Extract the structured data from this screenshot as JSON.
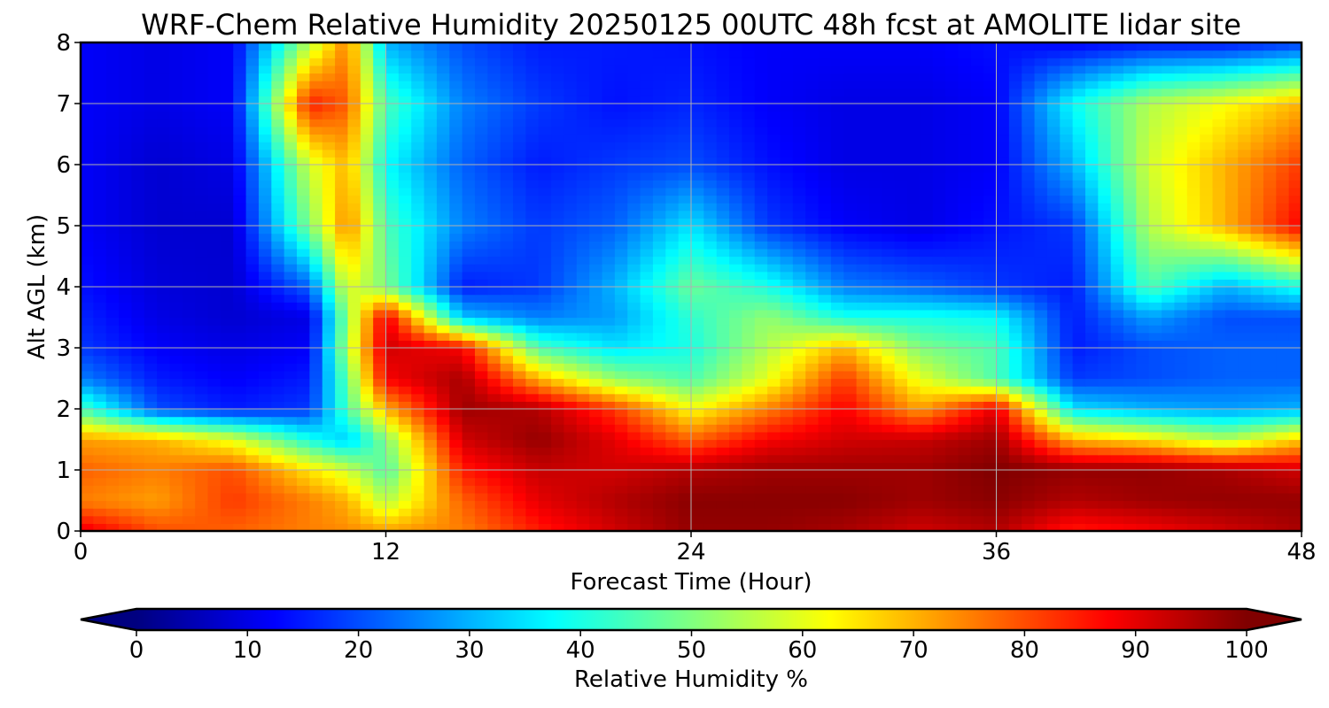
{
  "chart_data": {
    "type": "heatmap",
    "title": "WRF-Chem Relative Humidity 20250125 00UTC 48h fcst at AMOLITE lidar site",
    "xlabel": "Forecast Time (Hour)",
    "ylabel": "Alt AGL (km)",
    "xlim": [
      0,
      48
    ],
    "ylim": [
      0,
      8
    ],
    "xticks": [
      0,
      12,
      24,
      36,
      48
    ],
    "yticks": [
      0,
      1,
      2,
      3,
      4,
      5,
      6,
      7,
      8
    ],
    "grid": true,
    "colorbar": {
      "label": "Relative Humidity %",
      "range": [
        0,
        100
      ],
      "ticks": [
        0,
        10,
        20,
        30,
        40,
        50,
        60,
        70,
        80,
        90,
        100
      ],
      "colormap": "jet",
      "extend": "both",
      "orientation": "horizontal"
    },
    "x": [
      0,
      3,
      6,
      9,
      10.5,
      12,
      15,
      18,
      21,
      24,
      27,
      30,
      33,
      36,
      39,
      42,
      45,
      48
    ],
    "y": [
      0,
      0.5,
      1,
      1.5,
      2,
      2.5,
      3,
      3.5,
      4,
      5,
      6,
      7,
      8
    ],
    "values": [
      [
        90,
        80,
        78,
        75,
        74,
        72,
        75,
        85,
        92,
        98,
        98,
        96,
        92,
        95,
        85,
        88,
        92,
        96
      ],
      [
        75,
        72,
        82,
        75,
        70,
        55,
        78,
        90,
        95,
        99,
        99,
        99,
        97,
        99,
        95,
        97,
        98,
        98
      ],
      [
        78,
        75,
        80,
        65,
        58,
        45,
        85,
        93,
        92,
        95,
        97,
        97,
        97,
        100,
        98,
        98,
        96,
        92
      ],
      [
        72,
        70,
        60,
        40,
        32,
        50,
        92,
        98,
        90,
        78,
        88,
        92,
        93,
        97,
        70,
        65,
        55,
        68
      ],
      [
        45,
        20,
        15,
        18,
        45,
        70,
        97,
        95,
        82,
        62,
        75,
        88,
        72,
        90,
        35,
        30,
        28,
        30
      ],
      [
        25,
        15,
        12,
        15,
        48,
        88,
        96,
        70,
        52,
        45,
        60,
        82,
        60,
        45,
        18,
        20,
        22,
        22
      ],
      [
        18,
        12,
        10,
        12,
        55,
        92,
        88,
        45,
        35,
        40,
        55,
        70,
        50,
        45,
        15,
        20,
        22,
        22
      ],
      [
        16,
        10,
        8,
        10,
        52,
        90,
        32,
        25,
        28,
        42,
        52,
        40,
        40,
        38,
        15,
        28,
        20,
        20
      ],
      [
        14,
        9,
        8,
        22,
        60,
        50,
        15,
        18,
        30,
        48,
        40,
        25,
        22,
        18,
        15,
        45,
        30,
        40
      ],
      [
        12,
        8,
        8,
        50,
        75,
        45,
        25,
        18,
        22,
        35,
        18,
        12,
        10,
        14,
        18,
        55,
        70,
        88
      ],
      [
        12,
        8,
        10,
        58,
        70,
        38,
        22,
        15,
        18,
        20,
        14,
        10,
        10,
        12,
        30,
        58,
        70,
        82
      ],
      [
        12,
        10,
        12,
        85,
        78,
        45,
        25,
        18,
        14,
        16,
        12,
        10,
        10,
        12,
        38,
        55,
        62,
        70
      ],
      [
        12,
        10,
        12,
        55,
        75,
        30,
        20,
        15,
        15,
        14,
        12,
        12,
        12,
        14,
        12,
        14,
        14,
        18
      ]
    ]
  }
}
